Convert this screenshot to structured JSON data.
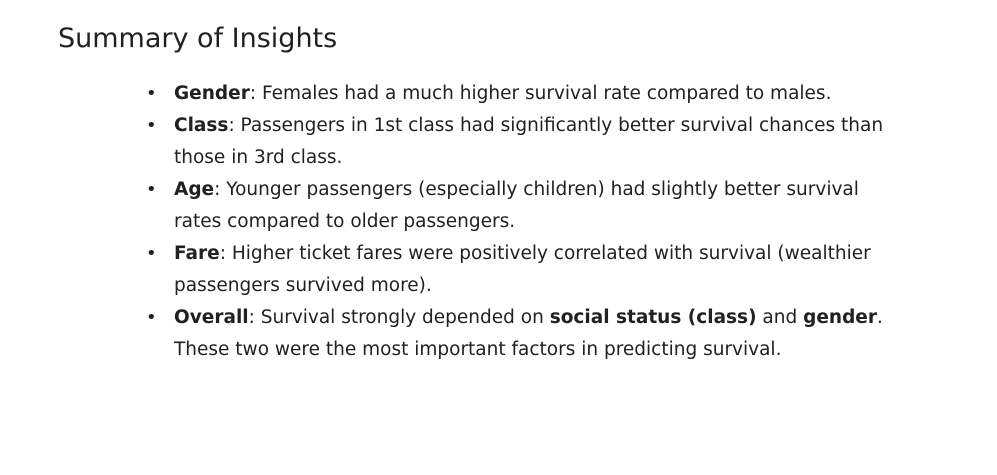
{
  "title": "Summary of Insights",
  "items": [
    {
      "term": "Gender",
      "text": ": Females had a much higher survival rate compared to males."
    },
    {
      "term": "Class",
      "text": ": Passengers in 1st class had significantly better survival chances than those in 3rd class."
    },
    {
      "term": "Age",
      "text": ": Younger passengers (especially children) had slightly better survival rates compared to older passengers."
    },
    {
      "term": "Fare",
      "text": ": Higher ticket fares were positively correlated with survival (wealthier passengers survived more)."
    },
    {
      "term": "Overall",
      "text_1": ": Survival strongly depended on ",
      "strong_1": "social status (class)",
      "text_2": " and ",
      "strong_2": "gender",
      "text_3": ". These two were the most important factors in predicting survival."
    }
  ],
  "bullet_char": "•"
}
